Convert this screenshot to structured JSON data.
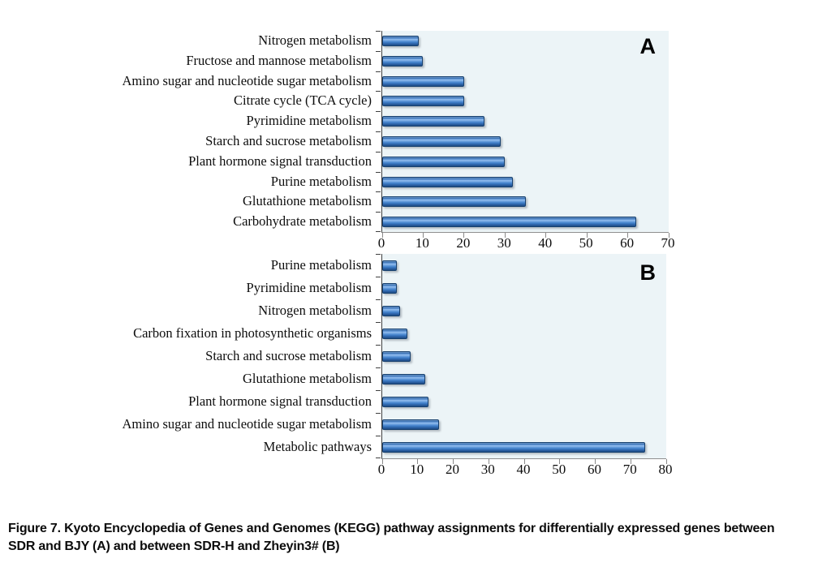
{
  "caption": {
    "line1": "Figure 7.  Kyoto Encyclopedia of Genes and Genomes (KEGG) pathway assignments for differentially expressed genes between",
    "line2": "SDR and BJY (A) and between SDR-H and Zheyin3# (B)"
  },
  "colors": {
    "plot_bg": "#ecf4f7",
    "bar_main": "#3d7cc6",
    "bar_highlight": "#93bdee",
    "bar_dark": "#1d4b84",
    "bar_border": "#17406e",
    "axis_line": "#8f8f8f",
    "tick_color": "#3f3f3f",
    "text": "#0d0d0d"
  },
  "chart_data": [
    {
      "type": "bar",
      "orientation": "horizontal",
      "panel_label": "A",
      "title": "",
      "xlabel": "",
      "ylabel": "",
      "grid": false,
      "legend": false,
      "xlim": [
        0,
        70
      ],
      "xticks": [
        0,
        10,
        20,
        30,
        40,
        50,
        60,
        70
      ],
      "categories": [
        "Nitrogen metabolism",
        "Fructose and mannose metabolism",
        "Amino sugar and nucleotide sugar metabolism",
        "Citrate cycle (TCA cycle)",
        "Pyrimidine metabolism",
        "Starch and sucrose metabolism",
        "Plant hormone signal transduction",
        "Purine metabolism",
        "Glutathione metabolism",
        "Carbohydrate metabolism"
      ],
      "values": [
        9,
        10,
        20,
        20,
        25,
        29,
        30,
        32,
        35,
        62
      ]
    },
    {
      "type": "bar",
      "orientation": "horizontal",
      "panel_label": "B",
      "title": "",
      "xlabel": "",
      "ylabel": "",
      "grid": false,
      "legend": false,
      "xlim": [
        0,
        80
      ],
      "xticks": [
        0,
        10,
        20,
        30,
        40,
        50,
        60,
        70,
        80
      ],
      "categories": [
        "Purine metabolism",
        "Pyrimidine metabolism",
        "Nitrogen metabolism",
        "Carbon fixation in photosynthetic organisms",
        "Starch and sucrose metabolism",
        "Glutathione metabolism",
        "Plant hormone signal transduction",
        "Amino sugar and nucleotide sugar metabolism",
        "Metabolic pathways"
      ],
      "values": [
        4,
        4,
        5,
        7,
        8,
        12,
        13,
        16,
        74
      ]
    }
  ]
}
